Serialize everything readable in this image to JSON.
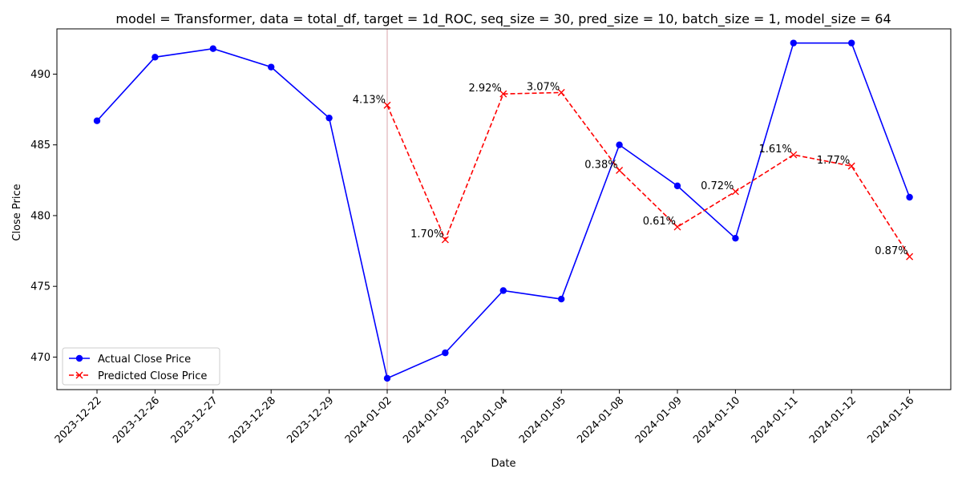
{
  "chart_data": {
    "type": "line",
    "title": "model = Transformer, data = total_df, target = 1d_ROC, seq_size = 30, pred_size = 10, batch_size = 1, model_size = 64",
    "xlabel": "Date",
    "ylabel": "Close Price",
    "ylim": [
      467.7,
      493.2
    ],
    "yticks": [
      470,
      475,
      480,
      485,
      490
    ],
    "grid": false,
    "legend_position": "lower-left",
    "categories": [
      "2023-12-22",
      "2023-12-26",
      "2023-12-27",
      "2023-12-28",
      "2023-12-29",
      "2024-01-02",
      "2024-01-03",
      "2024-01-04",
      "2024-01-05",
      "2024-01-08",
      "2024-01-09",
      "2024-01-10",
      "2024-01-11",
      "2024-01-12",
      "2024-01-16"
    ],
    "series": [
      {
        "name": "Actual Close Price",
        "color": "#0000ff",
        "style": "solid",
        "marker": "circle",
        "x": [
          "2023-12-22",
          "2023-12-26",
          "2023-12-27",
          "2023-12-28",
          "2023-12-29",
          "2024-01-02",
          "2024-01-03",
          "2024-01-04",
          "2024-01-05",
          "2024-01-08",
          "2024-01-09",
          "2024-01-10",
          "2024-01-11",
          "2024-01-12",
          "2024-01-16"
        ],
        "values": [
          486.7,
          491.2,
          491.8,
          490.5,
          486.9,
          468.5,
          470.3,
          474.7,
          474.1,
          485.0,
          482.1,
          478.4,
          492.2,
          492.2,
          481.3
        ]
      },
      {
        "name": "Predicted Close Price",
        "color": "#ff0000",
        "style": "dashed",
        "marker": "x",
        "x": [
          "2024-01-02",
          "2024-01-03",
          "2024-01-04",
          "2024-01-05",
          "2024-01-08",
          "2024-01-09",
          "2024-01-10",
          "2024-01-11",
          "2024-01-12",
          "2024-01-16"
        ],
        "values": [
          487.8,
          478.3,
          488.6,
          488.7,
          483.2,
          479.2,
          481.7,
          484.3,
          483.5,
          477.1
        ],
        "labels": [
          "4.13%",
          "1.70%",
          "2.92%",
          "3.07%",
          "0.38%",
          "0.61%",
          "0.72%",
          "1.61%",
          "1.77%",
          "0.87%"
        ]
      }
    ],
    "vline": {
      "x": "2024-01-02",
      "color": "#d9a3a8"
    }
  }
}
